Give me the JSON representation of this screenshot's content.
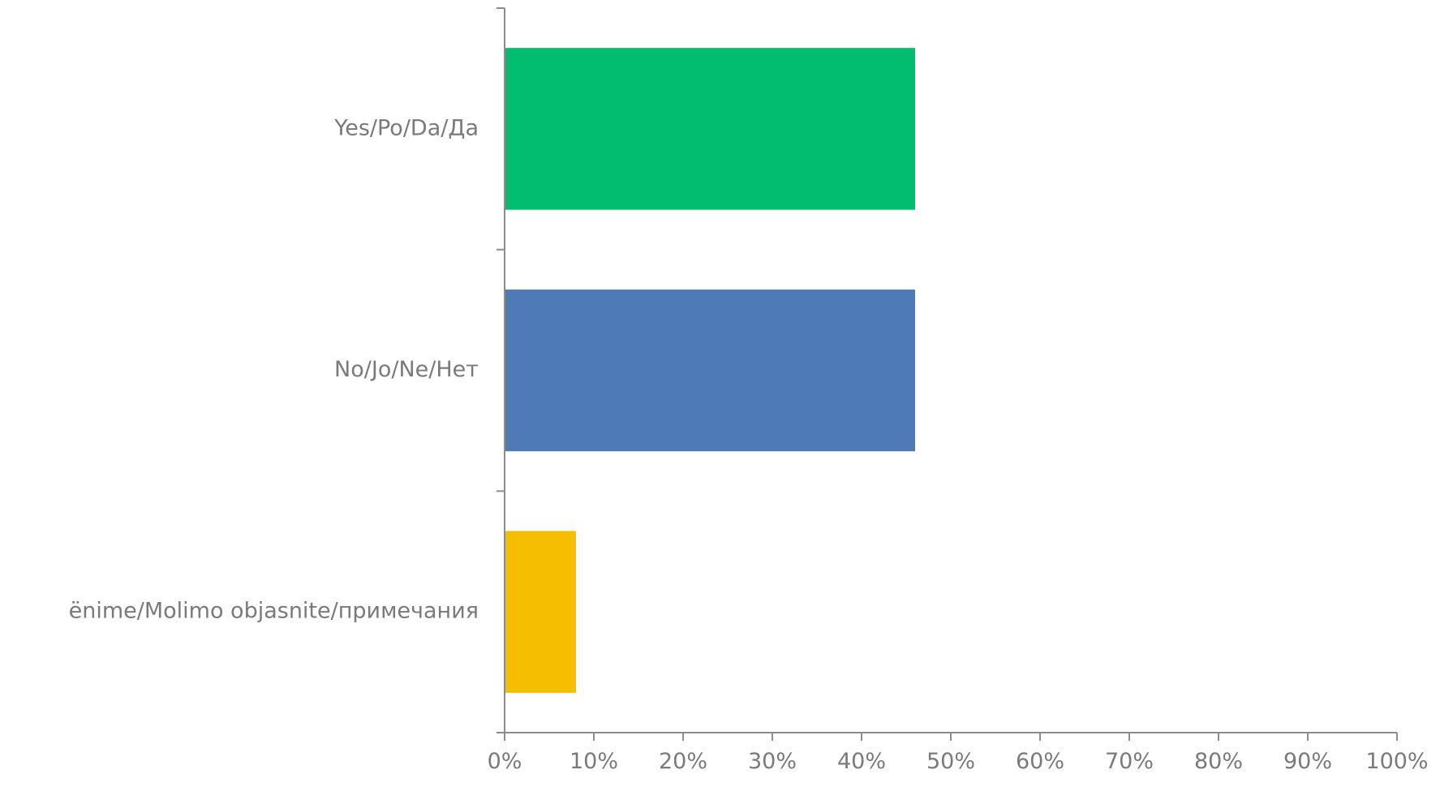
{
  "chart_data": {
    "type": "bar",
    "orientation": "horizontal",
    "title": "",
    "xlabel": "",
    "ylabel": "",
    "categories": [
      "Yes/Po/Da/Да",
      "No/Jo/Ne/Нет",
      "ënime/Molimo objasnite/примечания"
    ],
    "values": [
      46,
      46,
      8
    ],
    "value_unit": "%",
    "bar_colors": [
      "#00be6e",
      "#4e7bb5",
      "#f6be00"
    ],
    "xlim": [
      0,
      100
    ],
    "x_ticks": [
      "0%",
      "10%",
      "20%",
      "30%",
      "40%",
      "50%",
      "60%",
      "70%",
      "80%",
      "90%",
      "100%"
    ],
    "grid": false,
    "legend": "none"
  }
}
